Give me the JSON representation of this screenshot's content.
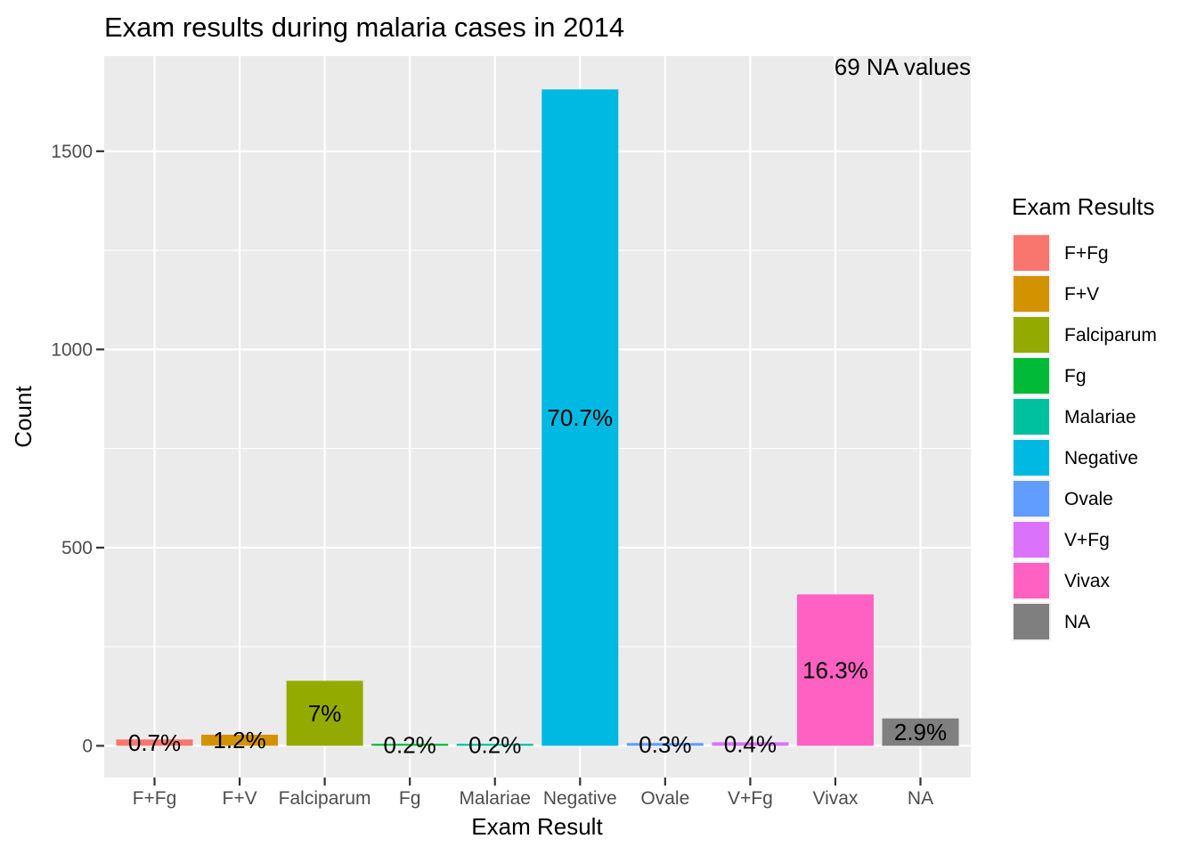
{
  "chart_data": {
    "type": "bar",
    "title": "Exam results during malaria cases in 2014",
    "xlabel": "Exam Result",
    "ylabel": "Count",
    "ylim": [
      -80,
      1740
    ],
    "yticks": [
      0,
      500,
      1000,
      1500
    ],
    "grid": true,
    "annotation": "69 NA values",
    "categories": [
      "F+Fg",
      "F+V",
      "Falciparum",
      "Fg",
      "Malariae",
      "Negative",
      "Ovale",
      "V+Fg",
      "Vivax",
      "NA"
    ],
    "values": [
      16,
      28,
      164,
      5,
      5,
      1656,
      7,
      9,
      382,
      69
    ],
    "labels": [
      "0.7%",
      "1.2%",
      "7%",
      "0.2%",
      "0.2%",
      "70.7%",
      "0.3%",
      "0.4%",
      "16.3%",
      "2.9%"
    ],
    "colors": [
      "#F8766D",
      "#D39200",
      "#93AA00",
      "#00BA38",
      "#00C19F",
      "#00B9E3",
      "#619CFF",
      "#DB72FB",
      "#FF61C3",
      "#7F7F7F"
    ],
    "legend": {
      "title": "Exam Results",
      "placement": "right",
      "entries": [
        "F+Fg",
        "F+V",
        "Falciparum",
        "Fg",
        "Malariae",
        "Negative",
        "Ovale",
        "V+Fg",
        "Vivax",
        "NA"
      ]
    }
  }
}
